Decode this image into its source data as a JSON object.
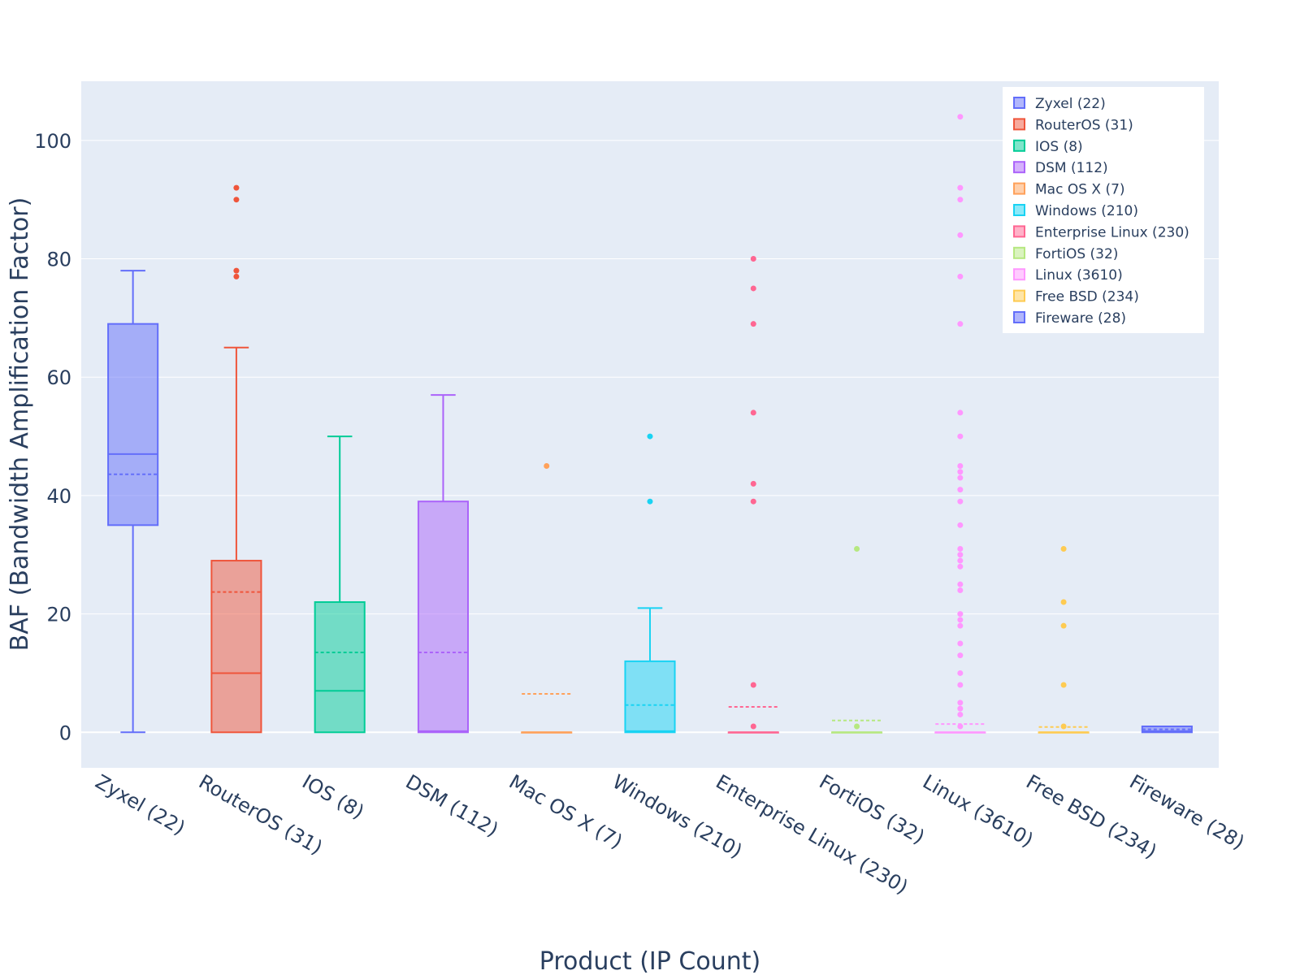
{
  "chart_data": {
    "type": "box",
    "xlabel": "Product (IP Count)",
    "ylabel": "BAF (Bandwidth Amplification Factor)",
    "ylim": [
      -6,
      110
    ],
    "yticks": [
      0,
      20,
      40,
      60,
      80,
      100
    ],
    "legend_position": "top-right",
    "grid": true,
    "categories": [
      "Zyxel (22)",
      "RouterOS (31)",
      "IOS (8)",
      "DSM (112)",
      "Mac OS X (7)",
      "Windows (210)",
      "Enterprise Linux (230)",
      "FortiOS (32)",
      "Linux (3610)",
      "Free BSD (234)",
      "Fireware (28)"
    ],
    "series": [
      {
        "name": "Zyxel (22)",
        "color": "#636efa",
        "min": 0,
        "q1": 35,
        "median": 47,
        "q3": 69,
        "max": 78,
        "mean": 43.6,
        "outliers": []
      },
      {
        "name": "RouterOS (31)",
        "color": "#EF553B",
        "min": 0,
        "q1": 0,
        "median": 10,
        "q3": 29,
        "max": 65,
        "mean": 23.7,
        "outliers": [
          92,
          90,
          78,
          77
        ]
      },
      {
        "name": "IOS (8)",
        "color": "#00cc96",
        "min": 0,
        "q1": 0,
        "median": 7,
        "q3": 22,
        "max": 50,
        "mean": 13.5,
        "outliers": []
      },
      {
        "name": "DSM (112)",
        "color": "#ab63fa",
        "min": 0,
        "q1": 0,
        "median": 0.2,
        "q3": 39,
        "max": 57,
        "mean": 13.5,
        "outliers": []
      },
      {
        "name": "Mac OS X (7)",
        "color": "#FFA15A",
        "min": 0,
        "q1": 0,
        "median": 0,
        "q3": 0,
        "max": 0,
        "mean": 6.5,
        "outliers": [
          45
        ]
      },
      {
        "name": "Windows (210)",
        "color": "#19d3f3",
        "min": 0,
        "q1": 0,
        "median": 0.2,
        "q3": 12,
        "max": 21,
        "mean": 4.6,
        "outliers": [
          50,
          39
        ]
      },
      {
        "name": "Enterprise Linux (230)",
        "color": "#FF6692",
        "min": 0,
        "q1": 0,
        "median": 0,
        "q3": 0,
        "max": 0,
        "mean": 4.3,
        "outliers": [
          80,
          75,
          69,
          54,
          42,
          39,
          8,
          1
        ]
      },
      {
        "name": "FortiOS (32)",
        "color": "#B6E880",
        "min": 0,
        "q1": 0,
        "median": 0,
        "q3": 0,
        "max": 0,
        "mean": 2.0,
        "outliers": [
          31,
          1
        ]
      },
      {
        "name": "Linux (3610)",
        "color": "#FF97FF",
        "min": 0,
        "q1": 0,
        "median": 0,
        "q3": 0,
        "max": 0,
        "mean": 1.4,
        "outliers": [
          104,
          92,
          90,
          84,
          77,
          69,
          54,
          50,
          45,
          44,
          43,
          41,
          39,
          35,
          31,
          30,
          29,
          28,
          25,
          24,
          20,
          19,
          18,
          15,
          13,
          10,
          8,
          5,
          4,
          3,
          1
        ]
      },
      {
        "name": "Free BSD (234)",
        "color": "#FECB52",
        "min": 0,
        "q1": 0,
        "median": 0,
        "q3": 0,
        "max": 0,
        "mean": 0.9,
        "outliers": [
          31,
          22,
          18,
          8,
          1
        ]
      },
      {
        "name": "Fireware (28)",
        "color": "#636efa",
        "min": 0,
        "q1": 0,
        "median": 0.2,
        "q3": 1,
        "max": 1,
        "mean": 0.5,
        "outliers": []
      }
    ]
  }
}
